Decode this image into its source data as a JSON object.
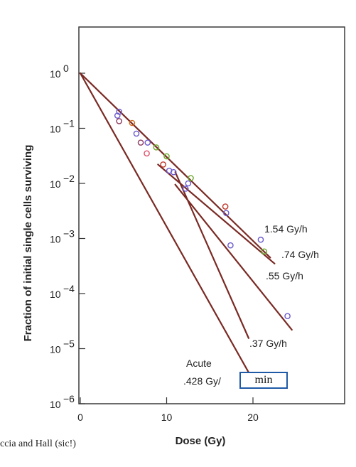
{
  "chart_data": {
    "type": "scatter",
    "title": "",
    "xlabel": "Dose (Gy)",
    "ylabel": "Fraction of initial single cells surviving",
    "x_range": [
      0,
      30
    ],
    "y_range": [
      1e-06,
      10
    ],
    "y_scale": "log",
    "grid": false,
    "x_ticks": [
      {
        "value": 0,
        "label": "0"
      },
      {
        "value": 10,
        "label": "10"
      },
      {
        "value": 20,
        "label": "20"
      }
    ],
    "y_ticks": [
      {
        "value": 1,
        "base": "10",
        "exp": "0"
      },
      {
        "value": 0.1,
        "base": "10",
        "exp": "−1"
      },
      {
        "value": 0.01,
        "base": "10",
        "exp": "−2"
      },
      {
        "value": 0.001,
        "base": "10",
        "exp": "−3"
      },
      {
        "value": 0.0001,
        "base": "10",
        "exp": "−4"
      },
      {
        "value": 1e-05,
        "base": "10",
        "exp": "−5"
      },
      {
        "value": 1e-06,
        "base": "10",
        "exp": "−6"
      }
    ],
    "series": [
      {
        "label": "1.54 Gy/h",
        "color": "#7a2a24",
        "line": [
          [
            0,
            1
          ],
          [
            22,
            0.00045
          ]
        ]
      },
      {
        "label": ".74 Gy/h",
        "color": "#7a2a24",
        "line": [
          [
            9,
            0.022
          ],
          [
            22.5,
            0.00035
          ]
        ]
      },
      {
        "label": ".55 Gy/h",
        "color": "#7a2a24",
        "line": [
          [
            11,
            0.0095
          ],
          [
            24.5,
            2.2e-05
          ]
        ]
      },
      {
        "label": ".37 Gy/h",
        "color": "#7a2a24",
        "line": [
          [
            11,
            0.016
          ],
          [
            19.5,
            1.55e-05
          ]
        ]
      },
      {
        "label": "Acute",
        "color": "#7a2a24",
        "line": [
          [
            0,
            1
          ],
          [
            19.5,
            3.7e-06
          ]
        ]
      }
    ],
    "points": [
      {
        "x": 4.5,
        "y": 0.2,
        "color": "#6a5acd"
      },
      {
        "x": 4.3,
        "y": 0.17,
        "color": "#6a5acd"
      },
      {
        "x": 4.5,
        "y": 0.135,
        "color": "#8b3a62"
      },
      {
        "x": 6.0,
        "y": 0.125,
        "color": "#d2691e"
      },
      {
        "x": 6.5,
        "y": 0.08,
        "color": "#6a5acd"
      },
      {
        "x": 7.0,
        "y": 0.055,
        "color": "#8b3a62"
      },
      {
        "x": 7.8,
        "y": 0.055,
        "color": "#6a5acd"
      },
      {
        "x": 7.7,
        "y": 0.035,
        "color": "#e0506a"
      },
      {
        "x": 8.8,
        "y": 0.045,
        "color": "#6aaa2a"
      },
      {
        "x": 9.6,
        "y": 0.022,
        "color": "#c0392b"
      },
      {
        "x": 10.0,
        "y": 0.031,
        "color": "#6aaa2a"
      },
      {
        "x": 10.3,
        "y": 0.017,
        "color": "#6a5acd"
      },
      {
        "x": 10.8,
        "y": 0.016,
        "color": "#6a5acd"
      },
      {
        "x": 12.2,
        "y": 0.008,
        "color": "#6a5acd"
      },
      {
        "x": 12.5,
        "y": 0.01,
        "color": "#6a5acd"
      },
      {
        "x": 12.8,
        "y": 0.0125,
        "color": "#6aaa2a"
      },
      {
        "x": 16.8,
        "y": 0.0038,
        "color": "#c0392b"
      },
      {
        "x": 16.9,
        "y": 0.0029,
        "color": "#6a5acd"
      },
      {
        "x": 17.4,
        "y": 0.00075,
        "color": "#6a5acd"
      },
      {
        "x": 20.9,
        "y": 0.00095,
        "color": "#6a5acd"
      },
      {
        "x": 21.3,
        "y": 0.00058,
        "color": "#6aaa2a"
      },
      {
        "x": 24.0,
        "y": 3.9e-05,
        "color": "#6a5acd"
      }
    ],
    "annotations": [
      {
        "key": "r154",
        "text": "1.54 Gy/h"
      },
      {
        "key": "r074",
        "text": ".74 Gy/h"
      },
      {
        "key": "r055",
        "text": ".55 Gy/h"
      },
      {
        "key": "r037",
        "text": ".37 Gy/h"
      },
      {
        "key": "acute",
        "text": "Acute"
      },
      {
        "key": "acute_rate",
        "text": ".428 Gy/"
      }
    ]
  },
  "overlay": {
    "unit_box_text": "min",
    "caption": "ccia and Hall (sic!)"
  }
}
